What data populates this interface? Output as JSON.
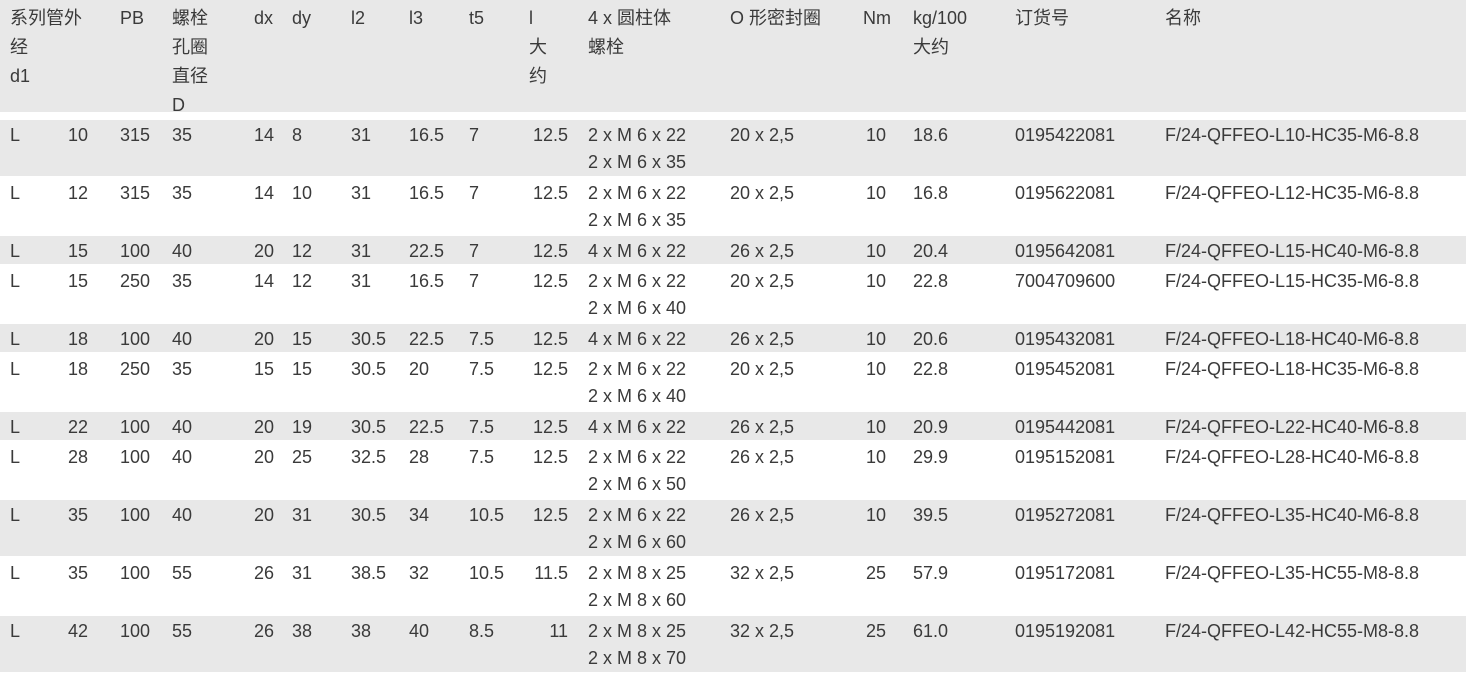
{
  "header": [
    "系列管外\n经\nd1",
    "",
    "PB",
    "螺栓\n孔圈\n直径\nD",
    "dx",
    "dy",
    "l2",
    "l3",
    "t5",
    "l\n大\n约",
    "4 x 圆柱体\n螺栓",
    "O 形密封圈",
    "Nm",
    "kg/100\n大约",
    "订货号",
    "名称"
  ],
  "rows": [
    [
      "L",
      "10",
      "315",
      "35",
      "14",
      "8",
      "31",
      "16.5",
      "7",
      "12.5",
      "2 x M 6 x 22\n2 x M 6 x 35",
      "20 x 2,5",
      "10",
      "18.6",
      "0195422081",
      "F/24-QFFEO-L10-HC35-M6-8.8"
    ],
    [
      "L",
      "12",
      "315",
      "35",
      "14",
      "10",
      "31",
      "16.5",
      "7",
      "12.5",
      "2 x M 6 x 22\n2 x M 6 x 35",
      "20 x 2,5",
      "10",
      "16.8",
      "0195622081",
      "F/24-QFFEO-L12-HC35-M6-8.8"
    ],
    [
      "L",
      "15",
      "100",
      "40",
      "20",
      "12",
      "31",
      "22.5",
      "7",
      "12.5",
      "4 x M 6 x 22",
      "26 x 2,5",
      "10",
      "20.4",
      "0195642081",
      "F/24-QFFEO-L15-HC40-M6-8.8"
    ],
    [
      "L",
      "15",
      "250",
      "35",
      "14",
      "12",
      "31",
      "16.5",
      "7",
      "12.5",
      "2 x M 6 x 22\n2 x M 6 x 40",
      "20 x 2,5",
      "10",
      "22.8",
      "7004709600",
      "F/24-QFFEO-L15-HC35-M6-8.8"
    ],
    [
      "L",
      "18",
      "100",
      "40",
      "20",
      "15",
      "30.5",
      "22.5",
      "7.5",
      "12.5",
      "4 x M 6 x 22",
      "26 x 2,5",
      "10",
      "20.6",
      "0195432081",
      "F/24-QFFEO-L18-HC40-M6-8.8"
    ],
    [
      "L",
      "18",
      "250",
      "35",
      "15",
      "15",
      "30.5",
      "20",
      "7.5",
      "12.5",
      "2 x M 6 x 22\n2 x M 6 x 40",
      "20 x 2,5",
      "10",
      "22.8",
      "0195452081",
      "F/24-QFFEO-L18-HC35-M6-8.8"
    ],
    [
      "L",
      "22",
      "100",
      "40",
      "20",
      "19",
      "30.5",
      "22.5",
      "7.5",
      "12.5",
      "4 x M 6 x 22",
      "26 x 2,5",
      "10",
      "20.9",
      "0195442081",
      "F/24-QFFEO-L22-HC40-M6-8.8"
    ],
    [
      "L",
      "28",
      "100",
      "40",
      "20",
      "25",
      "32.5",
      "28",
      "7.5",
      "12.5",
      "2 x M 6 x 22\n2 x M 6 x 50",
      "26 x 2,5",
      "10",
      "29.9",
      "0195152081",
      "F/24-QFFEO-L28-HC40-M6-8.8"
    ],
    [
      "L",
      "35",
      "100",
      "40",
      "20",
      "31",
      "30.5",
      "34",
      "10.5",
      "12.5",
      "2 x M 6 x 22\n2 x M 6 x 60",
      "26 x 2,5",
      "10",
      "39.5",
      "0195272081",
      "F/24-QFFEO-L35-HC40-M6-8.8"
    ],
    [
      "L",
      "35",
      "100",
      "55",
      "26",
      "31",
      "38.5",
      "32",
      "10.5",
      "11.5",
      "2 x M 8 x 25\n2 x M 8 x 60",
      "32 x 2,5",
      "25",
      "57.9",
      "0195172081",
      "F/24-QFFEO-L35-HC55-M8-8.8"
    ],
    [
      "L",
      "42",
      "100",
      "55",
      "26",
      "38",
      "38",
      "40",
      "8.5",
      "11",
      "2 x M 8 x 25\n2 x M 8 x 70",
      "32 x 2,5",
      "25",
      "61.0",
      "0195192081",
      "F/24-QFFEO-L42-HC55-M8-8.8"
    ]
  ],
  "colors": {
    "row_shade": "#e8e8e8",
    "text": "#3a3a3a"
  }
}
